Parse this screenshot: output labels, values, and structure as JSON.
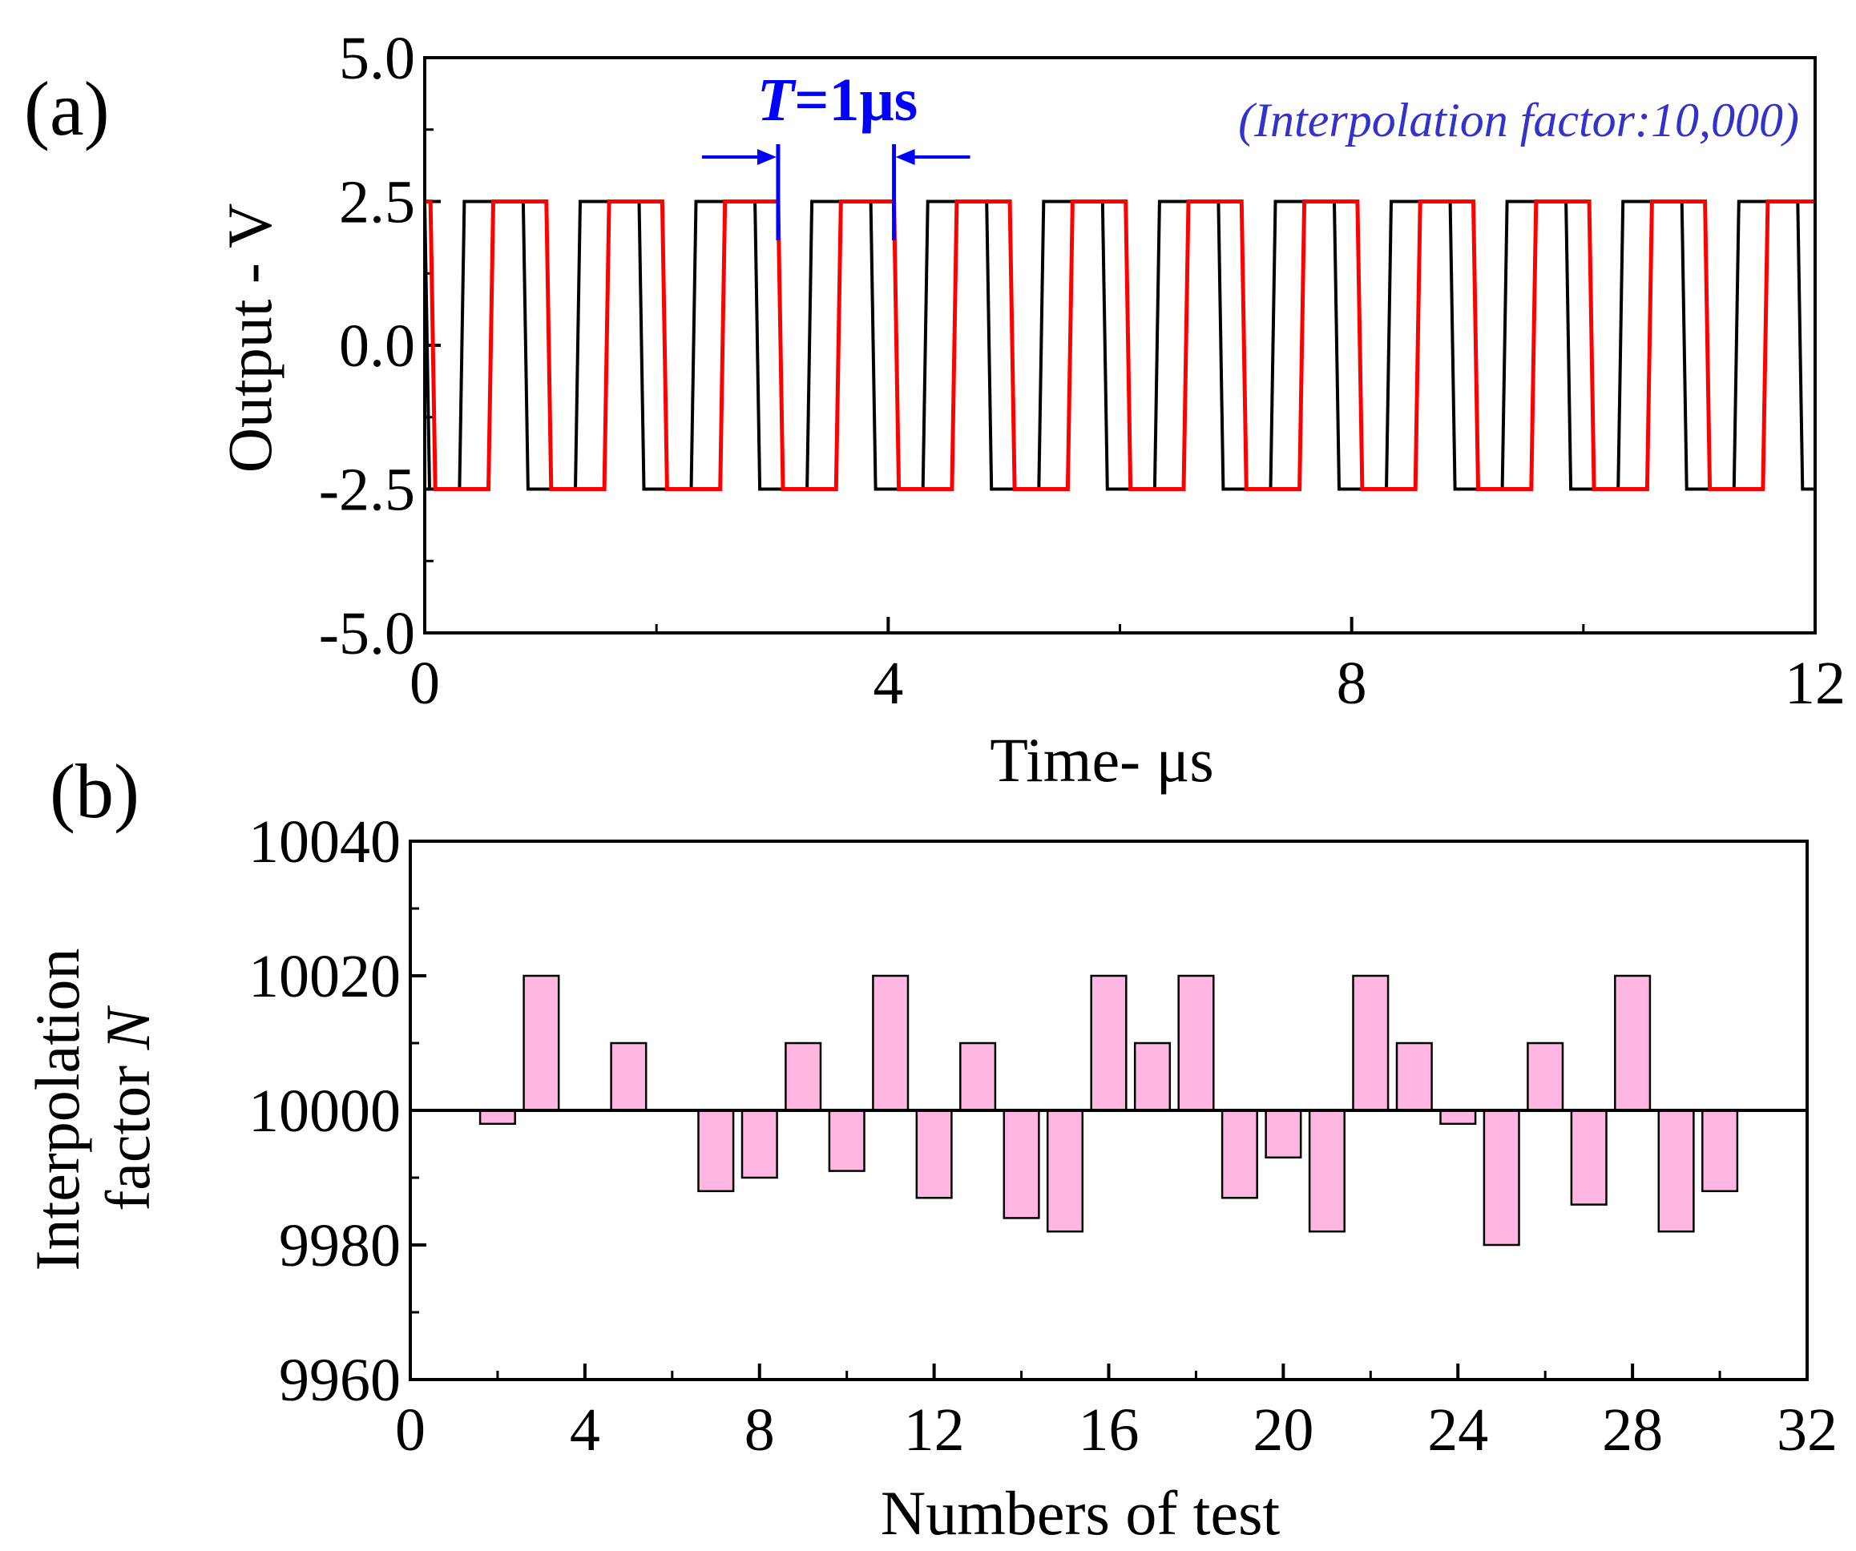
{
  "chart_data": [
    {
      "panel_label": "(a)",
      "type": "line",
      "xlabel": "Time- μs",
      "ylabel": "Output - V",
      "xlim": [
        0,
        12
      ],
      "ylim": [
        -5.0,
        5.0
      ],
      "xticks": [
        0,
        4,
        8,
        12
      ],
      "xtick_labels": [
        "0",
        "4",
        "8",
        "12"
      ],
      "yticks": [
        -5.0,
        -2.5,
        0.0,
        2.5,
        5.0
      ],
      "ytick_labels": [
        "-5.0",
        "-2.5",
        "0.0",
        "2.5",
        "5.0"
      ],
      "annotation_period": "T=1μs",
      "annotation_period_italic": "T",
      "annotation_period_rest": "=1μs",
      "annotation_factor": "(Interpolation factor:10,000)",
      "marker_times": [
        3.05,
        4.05
      ],
      "series": [
        {
          "name": "black trace",
          "color": "#000000",
          "high": 2.5,
          "low": -2.5,
          "edges": [
            0.0,
            0.3,
            0.85,
            1.3,
            1.85,
            2.3,
            2.85,
            3.3,
            3.85,
            4.3,
            4.85,
            5.3,
            5.85,
            6.3,
            6.85,
            7.3,
            7.85,
            8.3,
            8.85,
            9.3,
            9.85,
            10.3,
            10.85,
            11.3,
            11.85
          ]
        },
        {
          "name": "red trace",
          "color": "#ff0000",
          "high": 2.5,
          "low": -2.5,
          "edges": [
            0.05,
            0.55,
            1.05,
            1.55,
            2.05,
            2.55,
            3.05,
            3.55,
            4.05,
            4.55,
            5.05,
            5.55,
            6.05,
            6.55,
            7.05,
            7.55,
            8.05,
            8.55,
            9.05,
            9.55,
            10.05,
            10.55,
            11.05,
            11.55
          ]
        }
      ]
    },
    {
      "panel_label": "(b)",
      "type": "bar",
      "xlabel": "Numbers of test",
      "ylabel_line1": "Interpolation",
      "ylabel_line2_pre": "factor ",
      "ylabel_line2_italic": "N",
      "xlim": [
        0,
        32
      ],
      "ylim": [
        9960,
        10040
      ],
      "baseline": 10000,
      "xticks": [
        0,
        4,
        8,
        12,
        16,
        20,
        24,
        28,
        32
      ],
      "xtick_labels": [
        "0",
        "4",
        "8",
        "12",
        "16",
        "20",
        "24",
        "28",
        "32"
      ],
      "yticks": [
        9960,
        9980,
        10000,
        10020,
        10040
      ],
      "ytick_labels": [
        "9960",
        "9980",
        "10000",
        "10020",
        "10040"
      ],
      "bar_color": "#ffb6e1",
      "x": [
        2,
        3,
        4,
        5,
        6,
        7,
        8,
        9,
        10,
        11,
        12,
        13,
        14,
        15,
        16,
        17,
        18,
        19,
        20,
        21,
        22,
        23,
        24,
        25,
        26,
        27,
        28,
        29,
        30
      ],
      "values": [
        9998,
        10020,
        10000,
        10010,
        10000,
        9988,
        9990,
        10010,
        9991,
        10020,
        9987,
        10010,
        9984,
        9982,
        10020,
        10010,
        10020,
        9987,
        9993,
        9982,
        10020,
        10010,
        9998,
        9980,
        10010,
        9986,
        10020,
        9982,
        9988
      ]
    }
  ]
}
